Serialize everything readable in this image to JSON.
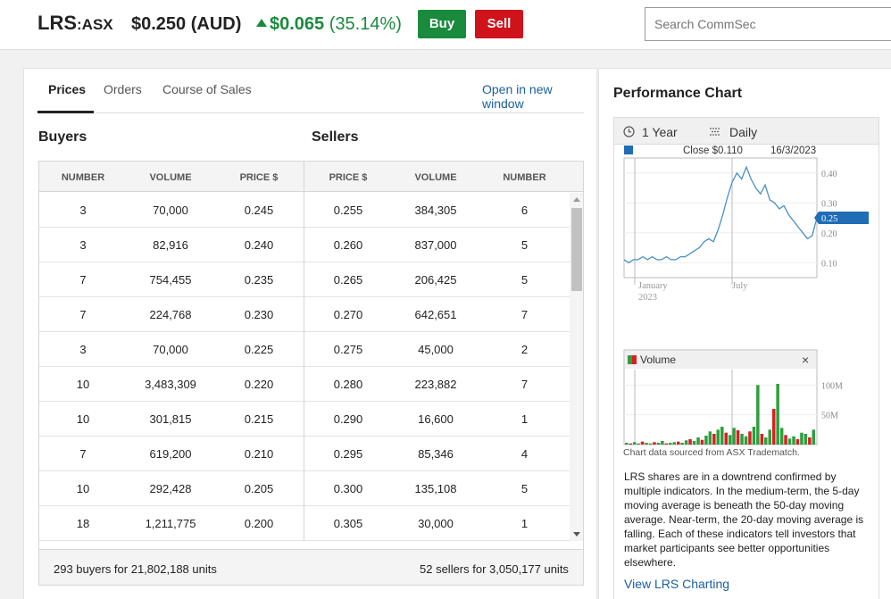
{
  "header": {
    "code": "LRS",
    "exchange": ":ASX",
    "price": "$0.250 (AUD)",
    "change_amount": "$0.065",
    "change_percent": "(35.14%)",
    "buy_label": "Buy",
    "sell_label": "Sell",
    "search_placeholder": "Search CommSec",
    "up_color": "#1a8a3c",
    "sell_color": "#d0121b"
  },
  "tabs": [
    "Prices",
    "Orders",
    "Course of Sales"
  ],
  "active_tab": "Prices",
  "open_link": "Open in new window",
  "depth": {
    "buyers_title": "Buyers",
    "sellers_title": "Sellers",
    "columns": [
      "NUMBER",
      "VOLUME",
      "PRICE $",
      "PRICE $",
      "VOLUME",
      "NUMBER"
    ],
    "rows": [
      [
        "3",
        "70,000",
        "0.245",
        "0.255",
        "384,305",
        "6"
      ],
      [
        "3",
        "82,916",
        "0.240",
        "0.260",
        "837,000",
        "5"
      ],
      [
        "7",
        "754,455",
        "0.235",
        "0.265",
        "206,425",
        "5"
      ],
      [
        "7",
        "224,768",
        "0.230",
        "0.270",
        "642,651",
        "7"
      ],
      [
        "3",
        "70,000",
        "0.225",
        "0.275",
        "45,000",
        "2"
      ],
      [
        "10",
        "3,483,309",
        "0.220",
        "0.280",
        "223,882",
        "7"
      ],
      [
        "10",
        "301,815",
        "0.215",
        "0.290",
        "16,600",
        "1"
      ],
      [
        "7",
        "619,200",
        "0.210",
        "0.295",
        "85,346",
        "4"
      ],
      [
        "10",
        "292,428",
        "0.205",
        "0.300",
        "135,108",
        "5"
      ],
      [
        "18",
        "1,211,775",
        "0.200",
        "0.305",
        "30,000",
        "1"
      ]
    ],
    "buyers_summary": "293 buyers for 21,802,188 units",
    "sellers_summary": "52 sellers for 3,050,177 units"
  },
  "performance": {
    "title": "Performance Chart",
    "period": "1 Year",
    "interval": "Daily",
    "close_label": "Close $0.110",
    "close_date": "16/3/2023",
    "last_price_tag": "0.25",
    "volume_label": "Volume",
    "source_note": "Chart data sourced from ASX Tradematch.",
    "description": "LRS shares are in a downtrend confirmed by multiple indicators. In the medium-term, the 5-day moving average is beneath the 50-day moving average. Near-term, the 20-day moving average is falling. Each of these indicators tell investors that market participants see better opportunities elsewhere.",
    "view_link": "View LRS Charting"
  },
  "chart_data": [
    {
      "type": "line",
      "title": "",
      "series": [
        {
          "name": "",
          "values": [
            0.11,
            0.1,
            0.11,
            0.11,
            0.12,
            0.11,
            0.12,
            0.11,
            0.11,
            0.12,
            0.11,
            0.11,
            0.12,
            0.12,
            0.13,
            0.14,
            0.15,
            0.17,
            0.18,
            0.17,
            0.21,
            0.26,
            0.32,
            0.37,
            0.4,
            0.38,
            0.42,
            0.38,
            0.35,
            0.33,
            0.36,
            0.31,
            0.3,
            0.28,
            0.29,
            0.26,
            0.24,
            0.22,
            0.2,
            0.18,
            0.19,
            0.25
          ]
        }
      ],
      "x_ticks": [
        "January\n2023",
        "July"
      ],
      "y_ticks": [
        0.1,
        0.2,
        0.3,
        0.4
      ],
      "ylim": [
        0.05,
        0.45
      ],
      "last_value": 0.25,
      "color": "#4a8fc4"
    },
    {
      "type": "bar",
      "title": "Volume",
      "y_ticks": [
        "50M",
        "100M"
      ],
      "ylim": [
        0,
        120
      ],
      "series": [
        {
          "name": "Volume",
          "values": [
            3,
            2,
            4,
            2,
            5,
            3,
            2,
            4,
            3,
            6,
            2,
            3,
            4,
            5,
            3,
            7,
            9,
            6,
            12,
            8,
            15,
            22,
            18,
            25,
            30,
            20,
            16,
            28,
            24,
            18,
            14,
            22,
            30,
            100,
            18,
            12,
            25,
            60,
            102,
            28,
            16,
            10,
            14,
            9,
            20,
            18,
            12,
            25
          ]
        }
      ],
      "colors": [
        "#2e9e3e",
        "#d62020"
      ]
    }
  ]
}
